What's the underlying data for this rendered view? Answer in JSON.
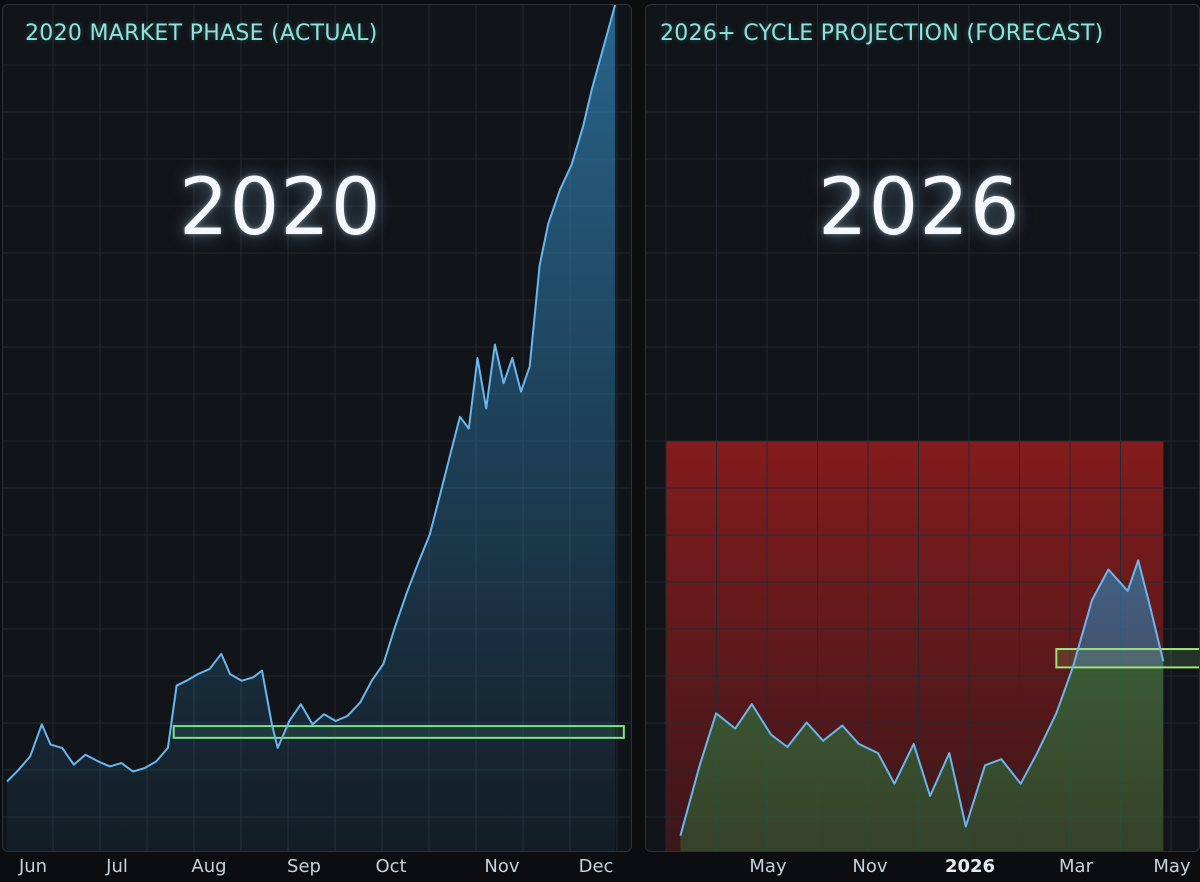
{
  "chart_data": [
    {
      "type": "area",
      "title": "2020 MARKET PHASE (ACTUAL)",
      "annotation": "2020",
      "x_ticks": [
        "Jun",
        "Jul",
        "Aug",
        "Sep",
        "Oct",
        "Nov",
        "Dec"
      ],
      "line_color": "#6ab7ee",
      "fill_color": "#2f7fb0",
      "band_color": "#7be38a",
      "grid": true,
      "series": [
        {
          "values": [
            {
              "x": "Jun 1",
              "y": 8
            },
            {
              "x": "Jun 5",
              "y": 15
            },
            {
              "x": "Jun 9",
              "y": 23
            },
            {
              "x": "Jun 13",
              "y": 42
            },
            {
              "x": "Jun 16",
              "y": 30
            },
            {
              "x": "Jun 20",
              "y": 28
            },
            {
              "x": "Jun 24",
              "y": 18
            },
            {
              "x": "Jun 28",
              "y": 24
            },
            {
              "x": "Jul 2",
              "y": 20
            },
            {
              "x": "Jul 6",
              "y": 17
            },
            {
              "x": "Jul 10",
              "y": 19
            },
            {
              "x": "Jul 14",
              "y": 14
            },
            {
              "x": "Jul 18",
              "y": 16
            },
            {
              "x": "Jul 22",
              "y": 20
            },
            {
              "x": "Jul 26",
              "y": 28
            },
            {
              "x": "Jul 29",
              "y": 65
            },
            {
              "x": "Aug 2",
              "y": 68
            },
            {
              "x": "Aug 6",
              "y": 72
            },
            {
              "x": "Aug 10",
              "y": 75
            },
            {
              "x": "Aug 14",
              "y": 84
            },
            {
              "x": "Aug 17",
              "y": 72
            },
            {
              "x": "Aug 21",
              "y": 68
            },
            {
              "x": "Aug 25",
              "y": 70
            },
            {
              "x": "Aug 28",
              "y": 74
            },
            {
              "x": "Sep 1",
              "y": 42
            },
            {
              "x": "Sep 3",
              "y": 28
            },
            {
              "x": "Sep 7",
              "y": 44
            },
            {
              "x": "Sep 11",
              "y": 54
            },
            {
              "x": "Sep 15",
              "y": 42
            },
            {
              "x": "Sep 19",
              "y": 48
            },
            {
              "x": "Sep 23",
              "y": 44
            },
            {
              "x": "Sep 27",
              "y": 47
            },
            {
              "x": "Oct 1",
              "y": 55
            },
            {
              "x": "Oct 5",
              "y": 68
            },
            {
              "x": "Oct 9",
              "y": 78
            },
            {
              "x": "Oct 13",
              "y": 100
            },
            {
              "x": "Oct 17",
              "y": 120
            },
            {
              "x": "Oct 21",
              "y": 138
            },
            {
              "x": "Oct 25",
              "y": 155
            },
            {
              "x": "Oct 29",
              "y": 182
            },
            {
              "x": "Nov 2",
              "y": 205
            },
            {
              "x": "Nov 5",
              "y": 225
            },
            {
              "x": "Nov 8",
              "y": 218
            },
            {
              "x": "Nov 11",
              "y": 260
            },
            {
              "x": "Nov 14",
              "y": 230
            },
            {
              "x": "Nov 17",
              "y": 268
            },
            {
              "x": "Nov 20",
              "y": 245
            },
            {
              "x": "Nov 23",
              "y": 260
            },
            {
              "x": "Nov 26",
              "y": 240
            },
            {
              "x": "Nov 29",
              "y": 255
            },
            {
              "x": "Dec 2",
              "y": 315
            },
            {
              "x": "Dec 5",
              "y": 340
            },
            {
              "x": "Dec 9",
              "y": 360
            },
            {
              "x": "Dec 13",
              "y": 375
            },
            {
              "x": "Dec 17",
              "y": 398
            },
            {
              "x": "Dec 20",
              "y": 420
            },
            {
              "x": "Dec 24",
              "y": 445
            },
            {
              "x": "Dec 28",
              "y": 470
            }
          ]
        }
      ],
      "band": {
        "x_start": "Jul 28",
        "x_end": "Dec 31",
        "y_low": 34,
        "y_high": 41
      }
    },
    {
      "type": "area",
      "title": "2026+ CYCLE PROJECTION (FORECAST)",
      "annotation": "2026",
      "x_ticks": [
        "May",
        "Nov",
        "2026",
        "Mar",
        "May"
      ],
      "bold_ticks": [
        "2026"
      ],
      "line_color": "#6ab7ee",
      "fill_color_below_band": "#2f6b3a",
      "shade_color": "#8a1c1c",
      "band_color": "#9ae37b",
      "grid": true,
      "series": [
        {
          "values": [
            {
              "x": "Feb 15",
              "y": 5
            },
            {
              "x": "Mar 1",
              "y": 28
            },
            {
              "x": "Mar 15",
              "y": 45
            },
            {
              "x": "Apr 1",
              "y": 40
            },
            {
              "x": "Apr 15",
              "y": 48
            },
            {
              "x": "May 1",
              "y": 38
            },
            {
              "x": "May 15",
              "y": 34
            },
            {
              "x": "Jun 1",
              "y": 42
            },
            {
              "x": "Jun 15",
              "y": 36
            },
            {
              "x": "Jul 1",
              "y": 41
            },
            {
              "x": "Jul 15",
              "y": 35
            },
            {
              "x": "Aug 1",
              "y": 32
            },
            {
              "x": "Aug 15",
              "y": 22
            },
            {
              "x": "Sep 1",
              "y": 35
            },
            {
              "x": "Sep 15",
              "y": 18
            },
            {
              "x": "Oct 1",
              "y": 32
            },
            {
              "x": "Oct 15",
              "y": 8
            },
            {
              "x": "Nov 1",
              "y": 28
            },
            {
              "x": "Nov 15",
              "y": 30
            },
            {
              "x": "Dec 1",
              "y": 22
            },
            {
              "x": "Dec 15",
              "y": 32
            },
            {
              "x": "Jan 1",
              "y": 45
            },
            {
              "x": "Jan 15",
              "y": 60
            },
            {
              "x": "Feb 1",
              "y": 82
            },
            {
              "x": "Feb 15",
              "y": 92
            },
            {
              "x": "Mar 1",
              "y": 85
            },
            {
              "x": "Mar 10",
              "y": 95
            },
            {
              "x": "Mar 20",
              "y": 80
            },
            {
              "x": "Apr 1",
              "y": 62
            }
          ]
        }
      ],
      "band": {
        "x_start": "Jan 1",
        "x_end": "May 31",
        "y_low": 60,
        "y_high": 66
      }
    }
  ]
}
